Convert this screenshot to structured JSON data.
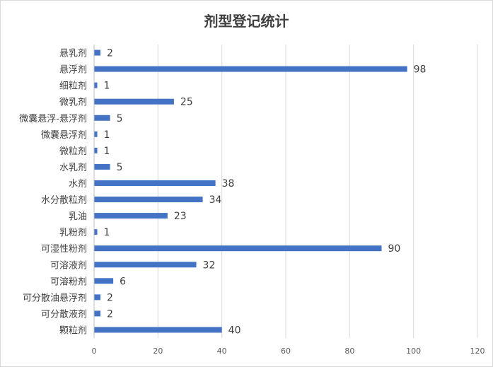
{
  "chart_data": {
    "type": "bar",
    "orientation": "horizontal",
    "title": "剂型登记统计",
    "categories": [
      "悬乳剂",
      "悬浮剂",
      "细粒剂",
      "微乳剂",
      "微囊悬浮-悬浮剂",
      "微囊悬浮剂",
      "微粒剂",
      "水乳剂",
      "水剂",
      "水分散粒剂",
      "乳油",
      "乳粉剂",
      "可湿性粉剂",
      "可溶液剂",
      "可溶粉剂",
      "可分散油悬浮剂",
      "可分散液剂",
      "颗粒剂"
    ],
    "values": [
      2,
      98,
      1,
      25,
      5,
      1,
      1,
      5,
      38,
      34,
      23,
      1,
      90,
      32,
      6,
      2,
      2,
      40
    ],
    "xlim": [
      0,
      120
    ],
    "xticks": [
      0,
      20,
      40,
      60,
      80,
      100,
      120
    ],
    "grid": true,
    "data_labels": true,
    "legend": "none",
    "bar_color": "#4472c4",
    "grid_color": "#d9d9d9"
  }
}
